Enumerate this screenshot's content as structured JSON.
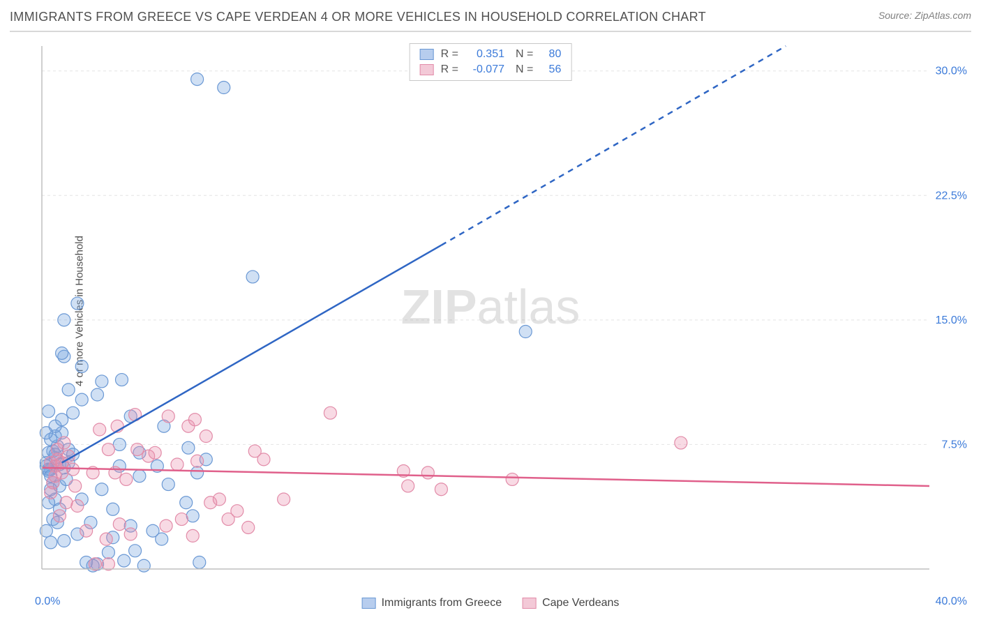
{
  "title": "IMMIGRANTS FROM GREECE VS CAPE VERDEAN 4 OR MORE VEHICLES IN HOUSEHOLD CORRELATION CHART",
  "source": "Source: ZipAtlas.com",
  "watermark_bold": "ZIP",
  "watermark_rest": "atlas",
  "y_axis_label": "4 or more Vehicles in Household",
  "chart": {
    "type": "scatter_with_regression",
    "x_range": [
      0,
      40
    ],
    "y_range": [
      0,
      31.5
    ],
    "x_min_label": "0.0%",
    "x_max_label": "40.0%",
    "y_tick_values": [
      7.5,
      15.0,
      22.5,
      30.0
    ],
    "y_tick_labels": [
      "7.5%",
      "15.0%",
      "22.5%",
      "30.0%"
    ],
    "grid_color": "#e4e4e4",
    "axis_color": "#bfbfbf",
    "axis_label_color": "#3b7ad9",
    "background_color": "#ffffff",
    "marker_radius": 9,
    "marker_stroke_width": 1.2,
    "series": [
      {
        "name": "Immigrants from Greece",
        "color_fill": "rgba(120,165,224,0.35)",
        "color_stroke": "#6a98d4",
        "swatch_fill": "#b7cdee",
        "swatch_border": "#6a98d4",
        "r_value": "0.351",
        "n_value": "80",
        "regression": {
          "x1": 0.9,
          "y1": 6.4,
          "x2_solid": 18.0,
          "y2_solid": 19.5,
          "x2_dash": 40.0,
          "y2_dash": 36.5,
          "color": "#2f66c4",
          "width": 2.5
        },
        "points": [
          [
            0.2,
            6.4
          ],
          [
            0.4,
            6.0
          ],
          [
            0.6,
            6.7
          ],
          [
            0.5,
            7.1
          ],
          [
            0.8,
            6.3
          ],
          [
            0.3,
            5.9
          ],
          [
            0.7,
            7.4
          ],
          [
            0.4,
            7.8
          ],
          [
            0.9,
            8.2
          ],
          [
            0.6,
            8.0
          ],
          [
            1.0,
            6.1
          ],
          [
            1.2,
            6.4
          ],
          [
            0.5,
            5.2
          ],
          [
            0.8,
            5.0
          ],
          [
            0.3,
            7.0
          ],
          [
            0.2,
            6.2
          ],
          [
            1.6,
            2.1
          ],
          [
            2.5,
            0.3
          ],
          [
            3.0,
            1.0
          ],
          [
            2.0,
            0.4
          ],
          [
            1.0,
            1.7
          ],
          [
            1.8,
            4.2
          ],
          [
            0.2,
            2.3
          ],
          [
            0.4,
            1.6
          ],
          [
            2.7,
            4.8
          ],
          [
            3.5,
            6.2
          ],
          [
            0.6,
            8.6
          ],
          [
            1.4,
            9.4
          ],
          [
            1.8,
            10.2
          ],
          [
            1.2,
            10.8
          ],
          [
            2.5,
            10.5
          ],
          [
            2.7,
            11.3
          ],
          [
            3.6,
            11.4
          ],
          [
            1.0,
            12.8
          ],
          [
            1.8,
            12.2
          ],
          [
            0.9,
            13.0
          ],
          [
            3.5,
            7.5
          ],
          [
            4.4,
            5.6
          ],
          [
            5.5,
            8.6
          ],
          [
            4.0,
            9.2
          ],
          [
            1.0,
            15.0
          ],
          [
            1.6,
            16.0
          ],
          [
            7.0,
            29.5
          ],
          [
            9.5,
            17.6
          ],
          [
            8.2,
            29.0
          ],
          [
            21.8,
            14.3
          ],
          [
            4.4,
            7.0
          ],
          [
            5.2,
            6.2
          ],
          [
            5.7,
            5.1
          ],
          [
            6.6,
            7.3
          ],
          [
            3.2,
            3.6
          ],
          [
            6.5,
            4.0
          ],
          [
            6.8,
            3.2
          ],
          [
            4.0,
            2.6
          ],
          [
            2.2,
            2.8
          ],
          [
            3.2,
            1.9
          ],
          [
            5.4,
            1.8
          ],
          [
            5.0,
            2.3
          ],
          [
            4.2,
            1.1
          ],
          [
            3.7,
            0.5
          ],
          [
            2.3,
            0.2
          ],
          [
            4.6,
            0.2
          ],
          [
            7.1,
            0.4
          ],
          [
            7.4,
            6.6
          ],
          [
            7.0,
            5.8
          ],
          [
            1.2,
            7.2
          ],
          [
            0.6,
            4.2
          ],
          [
            0.8,
            3.6
          ],
          [
            0.3,
            4.0
          ],
          [
            0.4,
            4.8
          ],
          [
            0.5,
            3.0
          ],
          [
            0.2,
            8.2
          ],
          [
            0.9,
            9.0
          ],
          [
            0.3,
            9.5
          ],
          [
            0.7,
            2.8
          ],
          [
            1.1,
            5.4
          ],
          [
            1.4,
            6.9
          ],
          [
            0.3,
            6.0
          ],
          [
            0.6,
            6.9
          ],
          [
            0.4,
            5.6
          ]
        ]
      },
      {
        "name": "Cape Verdeans",
        "color_fill": "rgba(232,140,170,0.32)",
        "color_stroke": "#e28ba8",
        "swatch_fill": "#f3c9d7",
        "swatch_border": "#e28ba8",
        "r_value": "-0.077",
        "n_value": "56",
        "regression": {
          "x1": 0.0,
          "y1": 6.1,
          "x2_solid": 40.0,
          "y2_solid": 5.0,
          "color": "#e0608b",
          "width": 2.5
        },
        "points": [
          [
            0.6,
            6.2
          ],
          [
            0.9,
            5.8
          ],
          [
            1.2,
            6.8
          ],
          [
            0.7,
            7.2
          ],
          [
            0.5,
            5.2
          ],
          [
            0.4,
            4.6
          ],
          [
            1.0,
            7.6
          ],
          [
            1.4,
            6.0
          ],
          [
            2.3,
            5.8
          ],
          [
            2.6,
            8.4
          ],
          [
            3.0,
            7.2
          ],
          [
            3.4,
            8.6
          ],
          [
            3.3,
            5.8
          ],
          [
            3.8,
            5.4
          ],
          [
            4.3,
            7.2
          ],
          [
            4.8,
            6.8
          ],
          [
            5.1,
            7.0
          ],
          [
            5.7,
            9.2
          ],
          [
            6.1,
            6.3
          ],
          [
            6.6,
            8.6
          ],
          [
            6.9,
            9.0
          ],
          [
            7.4,
            8.0
          ],
          [
            7.0,
            6.5
          ],
          [
            4.2,
            9.3
          ],
          [
            6.3,
            3.0
          ],
          [
            7.6,
            4.0
          ],
          [
            8.0,
            4.2
          ],
          [
            8.4,
            3.0
          ],
          [
            8.8,
            3.5
          ],
          [
            9.3,
            2.5
          ],
          [
            10.0,
            6.6
          ],
          [
            10.9,
            4.2
          ],
          [
            9.6,
            7.1
          ],
          [
            13.0,
            9.4
          ],
          [
            16.3,
            5.9
          ],
          [
            16.5,
            5.0
          ],
          [
            17.4,
            5.8
          ],
          [
            18.0,
            4.8
          ],
          [
            21.2,
            5.4
          ],
          [
            28.8,
            7.6
          ],
          [
            6.8,
            2.0
          ],
          [
            5.6,
            2.6
          ],
          [
            4.0,
            2.1
          ],
          [
            3.5,
            2.7
          ],
          [
            2.9,
            1.8
          ],
          [
            2.0,
            2.3
          ],
          [
            2.4,
            0.3
          ],
          [
            3.0,
            0.3
          ],
          [
            1.6,
            3.8
          ],
          [
            1.1,
            4.0
          ],
          [
            0.8,
            3.2
          ],
          [
            1.5,
            5.0
          ],
          [
            0.6,
            5.6
          ],
          [
            0.4,
            6.4
          ],
          [
            0.7,
            6.6
          ],
          [
            0.9,
            6.4
          ]
        ]
      }
    ]
  },
  "legend_top": {
    "r_label": "R =",
    "n_label": "N ="
  },
  "legend_bottom_label_1": "Immigrants from Greece",
  "legend_bottom_label_2": "Cape Verdeans"
}
